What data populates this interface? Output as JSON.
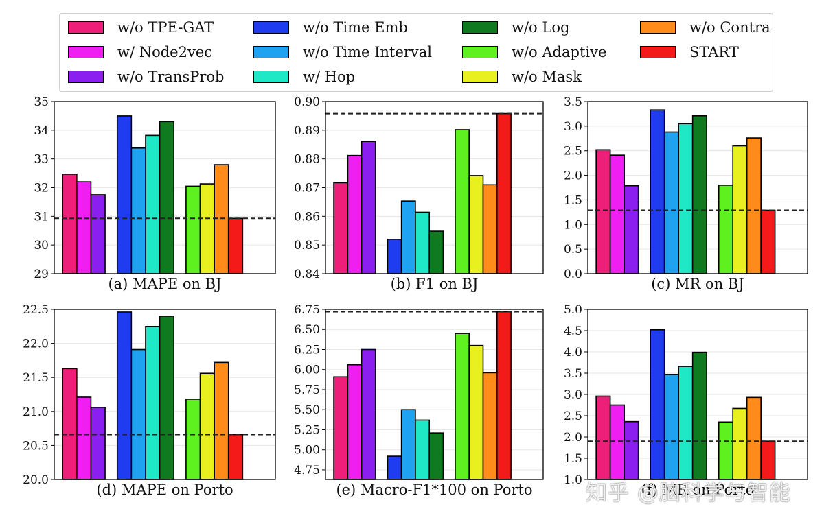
{
  "legend": [
    {
      "label": "w/o TPE-GAT",
      "color": "#ee1f79"
    },
    {
      "label": "w/ Node2vec",
      "color": "#ee1ff0"
    },
    {
      "label": "w/o TransProb",
      "color": "#8a1ff0"
    },
    {
      "label": "w/o Time Emb",
      "color": "#1f3cf0"
    },
    {
      "label": "w/o Time Interval",
      "color": "#1fa2f0"
    },
    {
      "label": "w/ Hop",
      "color": "#1fe8c6"
    },
    {
      "label": "w/o Log",
      "color": "#0f7a1f"
    },
    {
      "label": "w/o Adaptive",
      "color": "#5ef01f"
    },
    {
      "label": "w/o Mask",
      "color": "#e8f01f"
    },
    {
      "label": "w/o Contra",
      "color": "#ff8c1a"
    },
    {
      "label": "START",
      "color": "#f51a1a"
    }
  ],
  "watermark": "知乎 @脑科学与智能",
  "chart_data": [
    {
      "type": "bar",
      "title": "(a) MAPE on BJ",
      "ylim": [
        29,
        35
      ],
      "yticks": [
        "29",
        "30",
        "31",
        "32",
        "33",
        "34",
        "35"
      ],
      "values": [
        32.47,
        32.2,
        31.75,
        34.5,
        33.38,
        33.82,
        34.3,
        32.05,
        32.13,
        32.8,
        30.93
      ],
      "reference": 30.93
    },
    {
      "type": "bar",
      "title": "(b) F1 on BJ",
      "ylim": [
        0.84,
        0.9
      ],
      "yticks": [
        "0.84",
        "0.85",
        "0.86",
        "0.87",
        "0.88",
        "0.89",
        "0.90"
      ],
      "values": [
        0.8717,
        0.8812,
        0.8861,
        0.852,
        0.8653,
        0.8614,
        0.8548,
        0.8902,
        0.8742,
        0.871,
        0.8958
      ],
      "reference": 0.8958
    },
    {
      "type": "bar",
      "title": "(c) MR on BJ",
      "ylim": [
        0,
        3.5
      ],
      "yticks": [
        "0.0",
        "0.5",
        "1.0",
        "1.5",
        "2.0",
        "2.5",
        "3.0",
        "3.5"
      ],
      "values": [
        2.52,
        2.41,
        1.79,
        3.33,
        2.88,
        3.05,
        3.21,
        1.8,
        2.6,
        2.76,
        1.29
      ],
      "reference": 1.29
    },
    {
      "type": "bar",
      "title": "(d) MAPE on Porto",
      "ylim": [
        20.0,
        22.5
      ],
      "yticks": [
        "20.0",
        "20.5",
        "21.0",
        "21.5",
        "22.0",
        "22.5"
      ],
      "values": [
        21.63,
        21.21,
        21.06,
        22.46,
        21.91,
        22.25,
        22.4,
        21.18,
        21.56,
        21.72,
        20.66
      ],
      "reference": 20.66
    },
    {
      "type": "bar",
      "title": "(e) Macro-F1*100 on Porto",
      "ylim": [
        4.63,
        6.75
      ],
      "yticks": [
        "4.75",
        "5.00",
        "5.25",
        "5.50",
        "5.75",
        "6.00",
        "6.25",
        "6.50",
        "6.75"
      ],
      "values": [
        5.91,
        6.06,
        6.25,
        4.92,
        5.5,
        5.37,
        5.21,
        6.45,
        6.3,
        5.96,
        6.72
      ],
      "reference": 6.72
    },
    {
      "type": "bar",
      "title": "(f) MR on Porto",
      "ylim": [
        1.0,
        5.0
      ],
      "yticks": [
        "1.0",
        "1.5",
        "2.0",
        "2.5",
        "3.0",
        "3.5",
        "4.0",
        "4.5",
        "5.0"
      ],
      "values": [
        2.96,
        2.75,
        2.36,
        4.52,
        3.47,
        3.66,
        3.99,
        2.35,
        2.67,
        2.93,
        1.9
      ],
      "reference": 1.9
    }
  ]
}
